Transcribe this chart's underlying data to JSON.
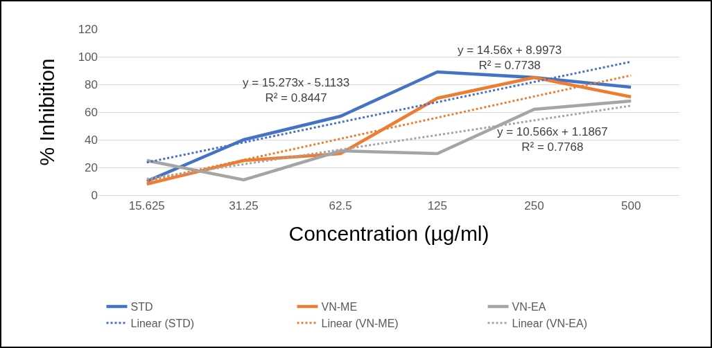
{
  "chart_data": {
    "type": "line",
    "xlabel": "Concentration (µg/ml)",
    "ylabel": "% Inhibition",
    "categories": [
      "15.625",
      "31.25",
      "62.5",
      "125",
      "250",
      "500"
    ],
    "series": [
      {
        "name": "STD",
        "color": "#4472c4",
        "values": [
          10,
          40,
          57,
          89,
          85,
          78
        ],
        "line_style": "solid"
      },
      {
        "name": "VN-ME",
        "color": "#ed7d31",
        "values": [
          8,
          25,
          30,
          70,
          85,
          71
        ],
        "line_style": "solid"
      },
      {
        "name": "VN-EA",
        "color": "#a5a5a5",
        "values": [
          25,
          11,
          32,
          30,
          62,
          68
        ],
        "line_style": "solid"
      },
      {
        "name": "Linear (STD)",
        "color": "#4472c4",
        "values": [
          23.6,
          38.1,
          52.7,
          67.2,
          81.8,
          96.4
        ],
        "line_style": "dotted"
      },
      {
        "name": "Linear (VN-ME)",
        "color": "#ed7d31",
        "values": [
          10.2,
          25.4,
          40.7,
          56.0,
          71.3,
          86.5
        ],
        "line_style": "dotted"
      },
      {
        "name": "Linear (VN-EA)",
        "color": "#a5a5a5",
        "values": [
          11.8,
          22.3,
          32.9,
          43.4,
          54.0,
          64.6
        ],
        "line_style": "dotted"
      }
    ],
    "annotations": [
      "y = 14.56x + 8.9973\nR² = 0.7738",
      "y = 15.273x - 5.1133\nR² = 0.8447",
      "y = 10.566x + 1.1867\nR² = 0.7768"
    ],
    "ylim": [
      0,
      120
    ],
    "yticks": [
      0,
      20,
      40,
      60,
      80,
      100,
      120
    ],
    "grid": "y",
    "legend": "bottom",
    "marker": "none"
  }
}
